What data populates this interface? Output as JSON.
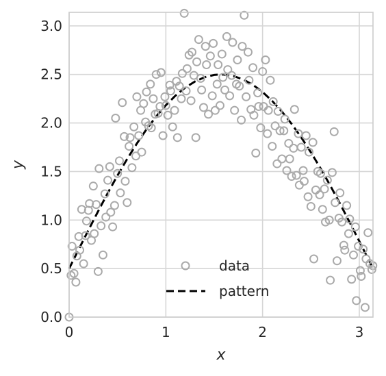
{
  "chart_data": {
    "type": "scatter",
    "xlabel": "x",
    "ylabel": "y",
    "xlim": [
      0,
      3.1416
    ],
    "ylim": [
      0,
      3.14
    ],
    "xticks": [
      0,
      1,
      2,
      3
    ],
    "yticks": [
      0.0,
      0.5,
      1.0,
      1.5,
      2.0,
      2.5,
      3.0
    ],
    "xtick_labels": [
      "0",
      "1",
      "2",
      "3"
    ],
    "ytick_labels": [
      "0.0",
      "0.5",
      "1.0",
      "1.5",
      "2.0",
      "2.5",
      "3.0"
    ],
    "grid": true,
    "legend": {
      "placement": "lower-center",
      "entries": [
        "data",
        "pattern"
      ]
    },
    "colors": {
      "data": "#aaaaaa",
      "pattern": "#000000",
      "grid": "#d6d6d6"
    },
    "series": [
      {
        "name": "data",
        "kind": "scatter",
        "marker": "open-circle",
        "points": [
          [
            0.0,
            0.0
          ],
          [
            0.02,
            0.43
          ],
          [
            0.03,
            0.73
          ],
          [
            0.05,
            0.45
          ],
          [
            0.07,
            0.36
          ],
          [
            0.08,
            0.63
          ],
          [
            0.1,
            0.83
          ],
          [
            0.11,
            0.69
          ],
          [
            0.13,
            1.11
          ],
          [
            0.15,
            0.55
          ],
          [
            0.17,
            0.84
          ],
          [
            0.18,
            0.99
          ],
          [
            0.2,
            1.1
          ],
          [
            0.21,
            1.17
          ],
          [
            0.23,
            0.79
          ],
          [
            0.25,
            1.35
          ],
          [
            0.26,
            0.86
          ],
          [
            0.28,
            1.16
          ],
          [
            0.3,
            0.47
          ],
          [
            0.31,
            1.53
          ],
          [
            0.33,
            0.94
          ],
          [
            0.35,
            0.64
          ],
          [
            0.37,
            1.27
          ],
          [
            0.38,
            1.03
          ],
          [
            0.4,
            1.41
          ],
          [
            0.42,
            1.55
          ],
          [
            0.43,
            1.08
          ],
          [
            0.45,
            0.93
          ],
          [
            0.47,
            1.15
          ],
          [
            0.48,
            2.05
          ],
          [
            0.5,
            1.48
          ],
          [
            0.52,
            1.61
          ],
          [
            0.53,
            1.28
          ],
          [
            0.55,
            2.21
          ],
          [
            0.57,
            1.86
          ],
          [
            0.58,
            1.4
          ],
          [
            0.6,
            1.18
          ],
          [
            0.62,
            1.76
          ],
          [
            0.63,
            1.85
          ],
          [
            0.65,
            1.54
          ],
          [
            0.67,
            1.96
          ],
          [
            0.69,
            1.66
          ],
          [
            0.7,
            2.27
          ],
          [
            0.72,
            1.87
          ],
          [
            0.74,
            2.13
          ],
          [
            0.75,
            1.7
          ],
          [
            0.77,
            2.2
          ],
          [
            0.79,
            2.01
          ],
          [
            0.8,
            2.32
          ],
          [
            0.82,
            1.97
          ],
          [
            0.84,
            2.4
          ],
          [
            0.85,
            1.95
          ],
          [
            0.87,
            2.25
          ],
          [
            0.89,
            2.09
          ],
          [
            0.9,
            2.5
          ],
          [
            0.92,
            2.1
          ],
          [
            0.94,
            2.17
          ],
          [
            0.95,
            2.52
          ],
          [
            0.97,
            1.87
          ],
          [
            0.99,
            2.27
          ],
          [
            1.0,
            2.18
          ],
          [
            1.02,
            2.08
          ],
          [
            1.04,
            2.39
          ],
          [
            1.05,
            2.33
          ],
          [
            1.07,
            1.96
          ],
          [
            1.09,
            2.13
          ],
          [
            1.11,
            2.43
          ],
          [
            1.12,
            1.85
          ],
          [
            1.14,
            2.38
          ],
          [
            1.16,
            2.25
          ],
          [
            1.17,
            2.51
          ],
          [
            1.19,
            3.13
          ],
          [
            1.21,
            2.33
          ],
          [
            1.22,
            2.56
          ],
          [
            1.24,
            2.7
          ],
          [
            1.26,
            2.23
          ],
          [
            1.27,
            2.73
          ],
          [
            1.29,
            2.49
          ],
          [
            1.31,
            1.85
          ],
          [
            1.32,
            2.63
          ],
          [
            1.34,
            2.86
          ],
          [
            1.36,
            2.46
          ],
          [
            1.37,
            2.34
          ],
          [
            1.39,
            2.16
          ],
          [
            1.41,
            2.79
          ],
          [
            1.42,
            2.6
          ],
          [
            1.44,
            2.09
          ],
          [
            1.46,
            2.69
          ],
          [
            1.48,
            2.28
          ],
          [
            1.49,
            2.82
          ],
          [
            1.51,
            2.13
          ],
          [
            1.53,
            2.4
          ],
          [
            1.54,
            2.6
          ],
          [
            1.56,
            2.18
          ],
          [
            1.58,
            2.71
          ],
          [
            1.59,
            2.47
          ],
          [
            1.61,
            2.34
          ],
          [
            1.63,
            2.89
          ],
          [
            1.64,
            2.55
          ],
          [
            1.66,
            2.28
          ],
          [
            1.68,
            2.49
          ],
          [
            1.69,
            2.83
          ],
          [
            1.71,
            2.13
          ],
          [
            1.73,
            2.4
          ],
          [
            1.74,
            2.65
          ],
          [
            1.76,
            2.38
          ],
          [
            1.78,
            2.03
          ],
          [
            1.79,
            2.79
          ],
          [
            1.81,
            3.11
          ],
          [
            1.83,
            2.27
          ],
          [
            1.85,
            2.73
          ],
          [
            1.86,
            2.44
          ],
          [
            1.88,
            2.14
          ],
          [
            1.9,
            2.57
          ],
          [
            1.91,
            2.08
          ],
          [
            1.93,
            1.69
          ],
          [
            1.95,
            2.31
          ],
          [
            1.96,
            2.17
          ],
          [
            1.98,
            1.95
          ],
          [
            2.0,
            2.53
          ],
          [
            2.01,
            2.17
          ],
          [
            2.03,
            2.65
          ],
          [
            2.05,
            1.89
          ],
          [
            2.06,
            2.13
          ],
          [
            2.08,
            2.44
          ],
          [
            2.1,
            1.76
          ],
          [
            2.11,
            2.22
          ],
          [
            2.13,
            1.97
          ],
          [
            2.15,
            1.58
          ],
          [
            2.16,
            2.12
          ],
          [
            2.18,
            1.92
          ],
          [
            2.2,
            1.63
          ],
          [
            2.22,
            1.92
          ],
          [
            2.23,
            2.04
          ],
          [
            2.25,
            1.51
          ],
          [
            2.27,
            1.79
          ],
          [
            2.28,
            1.63
          ],
          [
            2.3,
            1.45
          ],
          [
            2.32,
            1.74
          ],
          [
            2.33,
            2.14
          ],
          [
            2.35,
            1.46
          ],
          [
            2.37,
            1.89
          ],
          [
            2.38,
            1.36
          ],
          [
            2.4,
            1.75
          ],
          [
            2.42,
            1.51
          ],
          [
            2.43,
            1.4
          ],
          [
            2.45,
            1.87
          ],
          [
            2.47,
            1.24
          ],
          [
            2.48,
            1.7
          ],
          [
            2.5,
            1.14
          ],
          [
            2.52,
            1.8
          ],
          [
            2.53,
            0.6
          ],
          [
            2.55,
            1.31
          ],
          [
            2.57,
            1.5
          ],
          [
            2.59,
            1.26
          ],
          [
            2.6,
            1.48
          ],
          [
            2.62,
            1.11
          ],
          [
            2.64,
            1.32
          ],
          [
            2.65,
            0.98
          ],
          [
            2.67,
            1.41
          ],
          [
            2.69,
            1.0
          ],
          [
            2.7,
            0.38
          ],
          [
            2.72,
            1.49
          ],
          [
            2.74,
            1.91
          ],
          [
            2.75,
            1.18
          ],
          [
            2.77,
            0.58
          ],
          [
            2.79,
            1.02
          ],
          [
            2.8,
            1.28
          ],
          [
            2.82,
            0.98
          ],
          [
            2.84,
            0.74
          ],
          [
            2.85,
            0.69
          ],
          [
            2.87,
            1.15
          ],
          [
            2.89,
            0.86
          ],
          [
            2.9,
            1.01
          ],
          [
            2.92,
            0.39
          ],
          [
            2.94,
            0.64
          ],
          [
            2.96,
            0.93
          ],
          [
            2.97,
            0.17
          ],
          [
            2.99,
            0.73
          ],
          [
            3.01,
            0.48
          ],
          [
            3.02,
            0.42
          ],
          [
            3.04,
            0.7
          ],
          [
            3.06,
            0.1
          ],
          [
            3.07,
            0.6
          ],
          [
            3.09,
            0.87
          ],
          [
            3.11,
            0.55
          ],
          [
            3.13,
            0.49
          ],
          [
            3.14,
            0.53
          ]
        ]
      },
      {
        "name": "pattern",
        "kind": "line",
        "style": "dashed",
        "formula": "0.5 + 2*sin(x)",
        "x": [
          0.0,
          0.1,
          0.2,
          0.3,
          0.4,
          0.5,
          0.6,
          0.7,
          0.8,
          0.9,
          1.0,
          1.1,
          1.2,
          1.3,
          1.4,
          1.5,
          1.5708,
          1.6,
          1.7,
          1.8,
          1.9,
          2.0,
          2.1,
          2.2,
          2.3,
          2.4,
          2.5,
          2.6,
          2.7,
          2.8,
          2.9,
          3.0,
          3.1416
        ],
        "y": [
          0.5,
          0.7,
          0.897,
          1.091,
          1.279,
          1.459,
          1.629,
          1.788,
          1.935,
          2.067,
          2.183,
          2.282,
          2.364,
          2.427,
          2.471,
          2.495,
          2.5,
          2.499,
          2.483,
          2.448,
          2.393,
          2.319,
          2.226,
          2.117,
          1.991,
          1.851,
          1.697,
          1.531,
          1.355,
          1.17,
          0.977,
          0.782,
          0.5
        ]
      }
    ]
  }
}
